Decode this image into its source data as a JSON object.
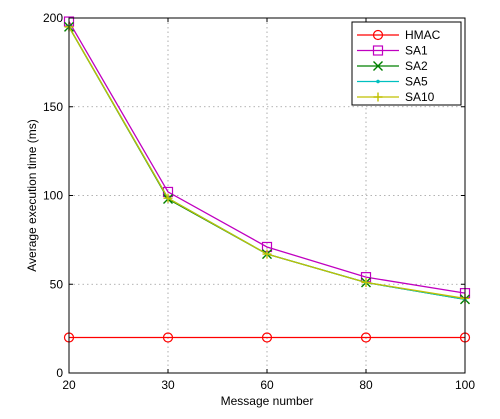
{
  "chart_data": {
    "type": "line",
    "xlabel": "Message number",
    "ylabel": "Average execution time (ms)",
    "categories": [
      "20",
      "30",
      "60",
      "80",
      "100"
    ],
    "ylim": [
      0,
      200
    ],
    "yticks": [
      0,
      50,
      100,
      150,
      200
    ],
    "grid": true,
    "legend_position": "top-right",
    "series": [
      {
        "name": "HMAC",
        "color": "#ff0000",
        "marker": "circle",
        "values": [
          20,
          20,
          20,
          20,
          20
        ]
      },
      {
        "name": "SA1",
        "color": "#c000c0",
        "marker": "square",
        "values": [
          198,
          102,
          71,
          54,
          45
        ]
      },
      {
        "name": "SA2",
        "color": "#008000",
        "marker": "x",
        "values": [
          195,
          98,
          67,
          51,
          41.5
        ]
      },
      {
        "name": "SA5",
        "color": "#00c0c0",
        "marker": "dot",
        "values": [
          195,
          98.5,
          67,
          51,
          41.5
        ]
      },
      {
        "name": "SA10",
        "color": "#c0c000",
        "marker": "plus",
        "values": [
          195,
          98.5,
          67,
          51,
          42
        ]
      }
    ]
  }
}
